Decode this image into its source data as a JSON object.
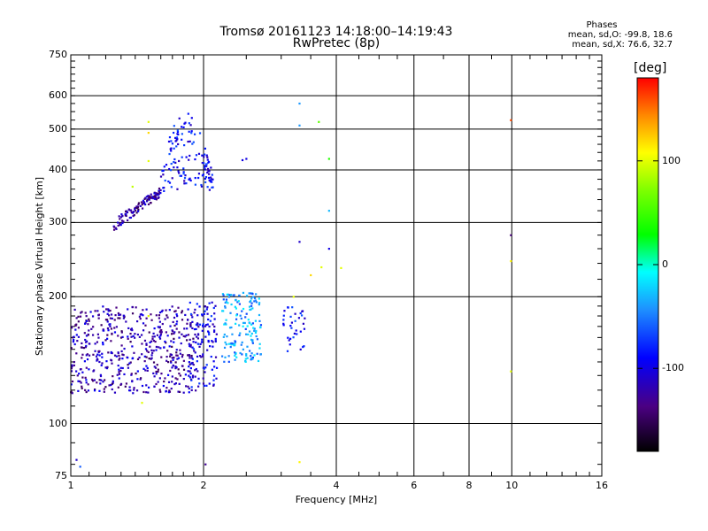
{
  "chart_data": {
    "type": "scatter",
    "title": "Tromsø 20161123 14:18:00–14:19:43",
    "subtitle": "RwPretec (8p)",
    "xlabel": "Frequency [MHz]",
    "ylabel": "Stationary phase Virtual Height [km]",
    "x_scale": "log",
    "y_scale": "log",
    "xlim": [
      1,
      16
    ],
    "ylim": [
      75,
      750
    ],
    "x_ticks": [
      "1",
      "2",
      "4",
      "6",
      "8",
      "10",
      "16"
    ],
    "y_ticks": [
      "75",
      "100",
      "200",
      "300",
      "400",
      "500",
      "600",
      "750"
    ],
    "grid": true,
    "phases_box": {
      "title": "Phases",
      "o_line": "mean, sd,O: -99.8, 18.6",
      "x_line": "mean, sd,X: 76.6, 32.7"
    },
    "colorbar": {
      "label": "[deg]",
      "range": [
        -180,
        180
      ],
      "ticks": [
        "100",
        "0",
        "-100"
      ]
    },
    "clusters": [
      {
        "name": "",
        "f": [
          1.0,
          1.95
        ],
        "h": [
          118,
          190
        ],
        "phase": -120,
        "n": 550
      },
      {
        "name": "",
        "f": [
          1.85,
          2.15
        ],
        "h": [
          122,
          195
        ],
        "phase": -95,
        "n": 110
      },
      {
        "name": "",
        "f": [
          2.2,
          2.7
        ],
        "h": [
          140,
          205
        ],
        "phase": -40,
        "n": 160
      },
      {
        "name": "",
        "f": [
          3.0,
          3.4
        ],
        "h": [
          145,
          190
        ],
        "phase": -85,
        "n": 35
      },
      {
        "name": "",
        "f": [
          1.25,
          1.6
        ],
        "h": [
          290,
          360
        ],
        "phase": -125,
        "n": 110
      },
      {
        "name": "",
        "f": [
          1.6,
          2.1
        ],
        "h": [
          355,
          600
        ],
        "phase": -90,
        "n": 140
      }
    ],
    "points": [
      {
        "x": 1.03,
        "y": 82,
        "phase": -110
      },
      {
        "x": 1.05,
        "y": 79,
        "phase": -60
      },
      {
        "x": 2.02,
        "y": 80,
        "phase": -130
      },
      {
        "x": 3.3,
        "y": 81,
        "phase": 110
      },
      {
        "x": 3.3,
        "y": 575,
        "phase": -40
      },
      {
        "x": 3.3,
        "y": 510,
        "phase": -40
      },
      {
        "x": 3.65,
        "y": 520,
        "phase": 60
      },
      {
        "x": 3.85,
        "y": 425,
        "phase": 40
      },
      {
        "x": 3.85,
        "y": 320,
        "phase": -30
      },
      {
        "x": 3.3,
        "y": 270,
        "phase": -110
      },
      {
        "x": 3.85,
        "y": 260,
        "phase": -100
      },
      {
        "x": 3.5,
        "y": 225,
        "phase": 120
      },
      {
        "x": 3.7,
        "y": 235,
        "phase": 100
      },
      {
        "x": 4.1,
        "y": 234,
        "phase": 100
      },
      {
        "x": 2.45,
        "y": 422,
        "phase": -100
      },
      {
        "x": 2.5,
        "y": 425,
        "phase": -100
      },
      {
        "x": 1.5,
        "y": 520,
        "phase": 100
      },
      {
        "x": 1.5,
        "y": 490,
        "phase": 120
      },
      {
        "x": 1.5,
        "y": 420,
        "phase": 100
      },
      {
        "x": 1.38,
        "y": 365,
        "phase": 90
      },
      {
        "x": 1.5,
        "y": 180,
        "phase": 100
      },
      {
        "x": 1.45,
        "y": 112,
        "phase": 100
      },
      {
        "x": 3.2,
        "y": 200,
        "phase": 100
      },
      {
        "x": 9.95,
        "y": 525,
        "phase": 160
      },
      {
        "x": 9.95,
        "y": 280,
        "phase": -140
      },
      {
        "x": 9.95,
        "y": 243,
        "phase": 110
      },
      {
        "x": 9.95,
        "y": 133,
        "phase": 100
      }
    ]
  }
}
